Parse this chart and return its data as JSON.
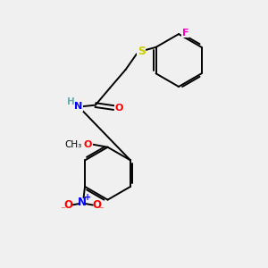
{
  "background_color": "#f0f0f0",
  "atom_colors": {
    "C": "#000000",
    "H": "#6aacac",
    "N": "#0000ff",
    "O": "#ff0000",
    "S": "#cccc00",
    "F": "#ff00cc"
  },
  "bond_color": "#000000",
  "figsize": [
    3.0,
    3.0
  ],
  "dpi": 100,
  "lw": 1.4
}
